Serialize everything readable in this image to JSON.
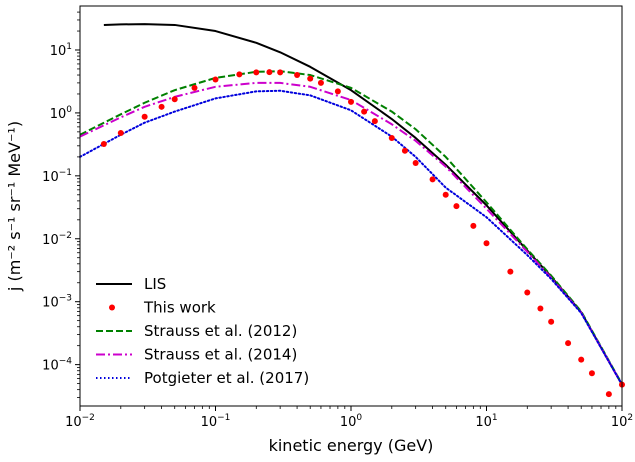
{
  "chart_data": {
    "type": "line",
    "title": "",
    "xlabel": "kinetic energy (GeV)",
    "ylabel": "j (m⁻² s⁻¹ sr⁻¹ MeV⁻¹)",
    "xscale": "log",
    "yscale": "log",
    "xlim": [
      0.01,
      100
    ],
    "ylim": [
      2.2e-05,
      50
    ],
    "x_ticks": [
      {
        "value": 0.01,
        "base": "10",
        "exp": "−2"
      },
      {
        "value": 0.1,
        "base": "10",
        "exp": "−1"
      },
      {
        "value": 1,
        "base": "10",
        "exp": "0"
      },
      {
        "value": 10,
        "base": "10",
        "exp": "1"
      },
      {
        "value": 100,
        "base": "10",
        "exp": "2"
      }
    ],
    "y_ticks": [
      {
        "value": 0.0001,
        "base": "10",
        "exp": "−4"
      },
      {
        "value": 0.001,
        "base": "10",
        "exp": "−3"
      },
      {
        "value": 0.01,
        "base": "10",
        "exp": "−2"
      },
      {
        "value": 0.1,
        "base": "10",
        "exp": "−1"
      },
      {
        "value": 1,
        "base": "10",
        "exp": "0"
      },
      {
        "value": 10,
        "base": "10",
        "exp": "1"
      }
    ],
    "grid": false,
    "legend_position": "bottom-left",
    "series": [
      {
        "name": "LIS",
        "style": "solid",
        "color": "#000000",
        "x": [
          0.015,
          0.02,
          0.03,
          0.05,
          0.1,
          0.2,
          0.3,
          0.5,
          1,
          2,
          3,
          5,
          10,
          20,
          30,
          50,
          100
        ],
        "y": [
          25,
          25.5,
          25.8,
          25,
          20,
          13,
          9.2,
          5.4,
          2.3,
          0.8,
          0.4,
          0.15,
          0.034,
          0.0065,
          0.0025,
          0.00068,
          4.8e-05
        ]
      },
      {
        "name": "This work",
        "style": "markers",
        "color": "#ff0000",
        "x": [
          0.015,
          0.02,
          0.03,
          0.04,
          0.05,
          0.07,
          0.1,
          0.15,
          0.2,
          0.25,
          0.3,
          0.4,
          0.5,
          0.6,
          0.8,
          1,
          1.25,
          1.5,
          2,
          2.5,
          3,
          4,
          5,
          6,
          8,
          10,
          15,
          20,
          25,
          30,
          40,
          50,
          60,
          80,
          100
        ],
        "y": [
          0.32,
          0.48,
          0.87,
          1.25,
          1.65,
          2.5,
          3.4,
          4.1,
          4.4,
          4.45,
          4.4,
          4.0,
          3.5,
          3.0,
          2.2,
          1.5,
          1.05,
          0.74,
          0.4,
          0.25,
          0.16,
          0.088,
          0.05,
          0.033,
          0.016,
          0.0085,
          0.003,
          0.0014,
          0.00078,
          0.00048,
          0.00022,
          0.00012,
          7.3e-05,
          3.4e-05,
          4.8e-05
        ]
      },
      {
        "name": "Strauss et al. (2012)",
        "style": "dashed",
        "color": "#008000",
        "x": [
          0.01,
          0.02,
          0.03,
          0.05,
          0.1,
          0.2,
          0.3,
          0.5,
          1,
          2,
          3,
          5,
          10,
          20,
          30,
          50,
          100
        ],
        "y": [
          0.45,
          0.95,
          1.45,
          2.3,
          3.6,
          4.5,
          4.6,
          4.0,
          2.5,
          1.05,
          0.55,
          0.2,
          0.038,
          0.0068,
          0.0026,
          0.0007,
          4.9e-05
        ]
      },
      {
        "name": "Strauss et al. (2014)",
        "style": "dashdot",
        "color": "#cc00cc",
        "x": [
          0.01,
          0.02,
          0.03,
          0.05,
          0.1,
          0.2,
          0.3,
          0.5,
          1,
          2,
          3,
          5,
          10,
          20,
          30,
          50,
          100
        ],
        "y": [
          0.42,
          0.85,
          1.25,
          1.8,
          2.6,
          3.0,
          3.0,
          2.6,
          1.6,
          0.66,
          0.36,
          0.14,
          0.03,
          0.0062,
          0.0024,
          0.00067,
          4.8e-05
        ]
      },
      {
        "name": "Potgieter et al. (2017)",
        "style": "dotted",
        "color": "#0000dd",
        "x": [
          0.01,
          0.02,
          0.03,
          0.05,
          0.1,
          0.2,
          0.3,
          0.5,
          1,
          2,
          3,
          5,
          10,
          20,
          30,
          50,
          100
        ],
        "y": [
          0.2,
          0.45,
          0.7,
          1.05,
          1.7,
          2.2,
          2.25,
          1.9,
          1.1,
          0.42,
          0.2,
          0.065,
          0.022,
          0.0055,
          0.0023,
          0.00066,
          4.8e-05
        ]
      }
    ]
  }
}
